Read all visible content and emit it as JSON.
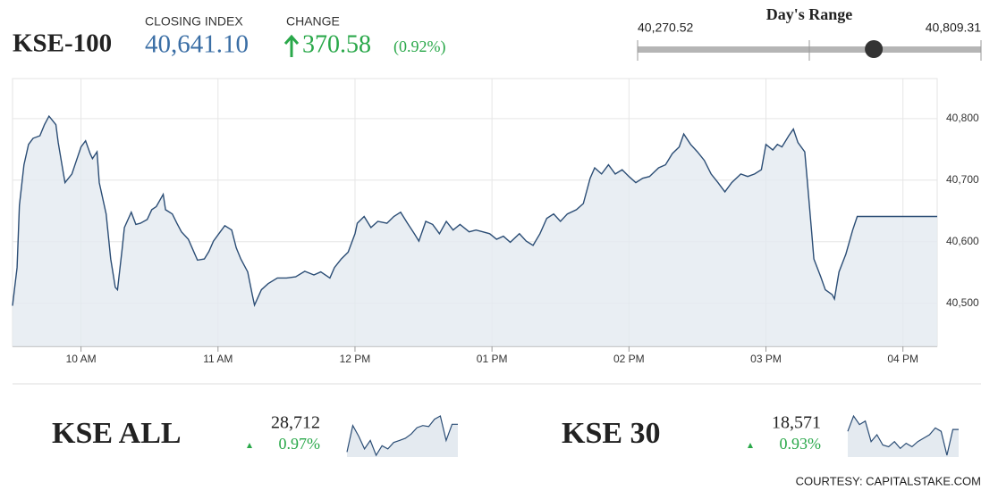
{
  "header": {
    "title": "KSE-100",
    "closing_label": "CLOSING INDEX",
    "closing_value": {
      "value": 40641.1,
      "label": "40,641.10"
    },
    "change_label": "CHANGE",
    "change_value": "370.58",
    "change_percent": "(0.92%)"
  },
  "day_range": {
    "title": "Day's Range",
    "low": {
      "value": 40270.52,
      "label": "40,270.52"
    },
    "high": {
      "value": 40809.31,
      "label": "40,809.31"
    }
  },
  "chart_data": {
    "type": "line",
    "color": "#2b4d75",
    "grid": true,
    "x": [
      570,
      572,
      573,
      575,
      577,
      579,
      582,
      584,
      586,
      589,
      590,
      592,
      593,
      596,
      598,
      600,
      602,
      604,
      605,
      607,
      608,
      611,
      613,
      615,
      616,
      618,
      619,
      622,
      624,
      626,
      629,
      631,
      633,
      636,
      637,
      640,
      642,
      644,
      647,
      649,
      651,
      654,
      656,
      658,
      661,
      663,
      666,
      668,
      670,
      673,
      675,
      676,
      679,
      682,
      686,
      690,
      694,
      698,
      702,
      705,
      709,
      711,
      714,
      717,
      720,
      721,
      724,
      727,
      730,
      734,
      737,
      740,
      743,
      746,
      748,
      751,
      754,
      757,
      760,
      763,
      766,
      770,
      773,
      776,
      779,
      782,
      785,
      788,
      792,
      795,
      798,
      801,
      804,
      807,
      810,
      813,
      817,
      820,
      823,
      825,
      828,
      831,
      834,
      837,
      840,
      843,
      846,
      849,
      853,
      856,
      859,
      862,
      864,
      867,
      870,
      873,
      876,
      879,
      882,
      885,
      889,
      892,
      895,
      898,
      900,
      903,
      905,
      907,
      910,
      912,
      914,
      917,
      918,
      920,
      921,
      924,
      926,
      929,
      930,
      932,
      935,
      938,
      940,
      975
    ],
    "values": [
      40496,
      40558,
      40659,
      40725,
      40758,
      40768,
      40772,
      40790,
      40804,
      40790,
      40761,
      40717,
      40696,
      40710,
      40732,
      40754,
      40764,
      40743,
      40735,
      40746,
      40696,
      40645,
      40572,
      40526,
      40522,
      40587,
      40623,
      40648,
      40628,
      40630,
      40636,
      40652,
      40657,
      40677,
      40652,
      40645,
      40630,
      40616,
      40604,
      40587,
      40570,
      40572,
      40584,
      40601,
      40616,
      40626,
      40619,
      40590,
      40572,
      40551,
      40514,
      40497,
      40522,
      40532,
      40541,
      40541,
      40543,
      40552,
      40546,
      40551,
      40541,
      40558,
      40572,
      40583,
      40613,
      40630,
      40641,
      40623,
      40633,
      40630,
      40641,
      40648,
      40630,
      40613,
      40601,
      40633,
      40628,
      40613,
      40633,
      40619,
      40628,
      40616,
      40619,
      40616,
      40613,
      40604,
      40609,
      40599,
      40613,
      40601,
      40594,
      40613,
      40638,
      40645,
      40633,
      40645,
      40652,
      40662,
      40703,
      40720,
      40710,
      40725,
      40710,
      40717,
      40706,
      40696,
      40703,
      40706,
      40720,
      40725,
      40743,
      40754,
      40775,
      40758,
      40746,
      40732,
      40710,
      40696,
      40681,
      40696,
      40710,
      40706,
      40710,
      40717,
      40758,
      40749,
      40758,
      40754,
      40772,
      40783,
      40761,
      40746,
      40703,
      40616,
      40572,
      40543,
      40522,
      40514,
      40507,
      40551,
      40580,
      40619,
      40641,
      40641
    ],
    "xlim": [
      570,
      975
    ],
    "xticks": [
      {
        "value": 600,
        "label": "10 AM"
      },
      {
        "value": 660,
        "label": "11 AM"
      },
      {
        "value": 720,
        "label": "12 PM"
      },
      {
        "value": 780,
        "label": "01 PM"
      },
      {
        "value": 840,
        "label": "02 PM"
      },
      {
        "value": 900,
        "label": "03 PM"
      },
      {
        "value": 960,
        "label": "04 PM"
      }
    ],
    "ylim": [
      40430,
      40865
    ],
    "yticks": [
      {
        "value": 40500,
        "label": "40,500"
      },
      {
        "value": 40600,
        "label": "40,600"
      },
      {
        "value": 40700,
        "label": "40,700"
      },
      {
        "value": 40800,
        "label": "40,800"
      }
    ]
  },
  "indices": [
    {
      "name": "KSE ALL",
      "value": {
        "value": 28712,
        "label": "28,712"
      },
      "change": "0.97%",
      "spark": [
        28450,
        28700,
        28600,
        28480,
        28560,
        28420,
        28510,
        28480,
        28540,
        28560,
        28580,
        28620,
        28680,
        28700,
        28690,
        28760,
        28790,
        28560,
        28712,
        28712
      ]
    },
    {
      "name": "KSE 30",
      "value": {
        "value": 18571,
        "label": "18,571"
      },
      "change": "0.93%",
      "spark": [
        18560,
        18650,
        18600,
        18620,
        18500,
        18540,
        18480,
        18470,
        18500,
        18460,
        18490,
        18470,
        18500,
        18520,
        18540,
        18580,
        18560,
        18420,
        18571,
        18571
      ]
    }
  ],
  "courtesy": "COURTESY: CAPITALSTAKE.COM"
}
